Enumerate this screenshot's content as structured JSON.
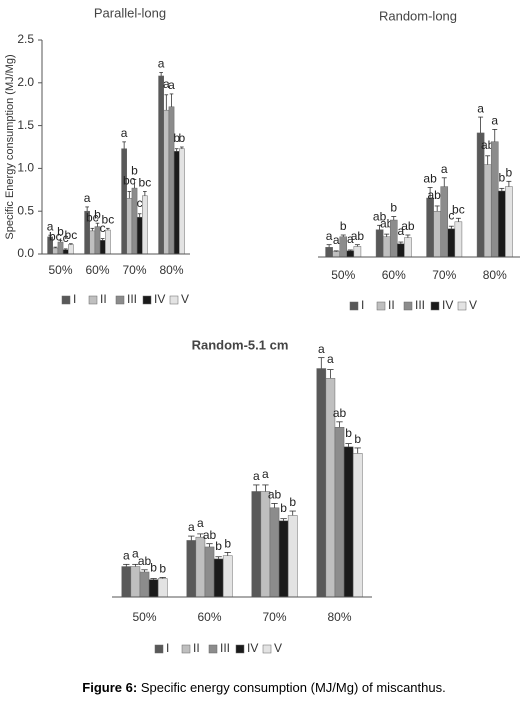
{
  "chart_data": [
    {
      "type": "bar",
      "title": "Parallel-long",
      "y_label": "Specific Energy consumption (MJ/Mg)",
      "categories": [
        "50%",
        "60%",
        "70%",
        "80%"
      ],
      "ylim": [
        0,
        2.5
      ],
      "yticks": [
        {
          "value": 0,
          "label": "0.0"
        },
        0.5,
        {
          "value": 1,
          "label": "1.0"
        },
        1.5,
        {
          "value": 2,
          "label": "2.0"
        },
        2.5
      ],
      "series": [
        {
          "name": "I",
          "color": "#595959",
          "values": [
            0.2,
            0.5,
            1.23,
            2.08
          ],
          "errors": [
            0.02,
            0.05,
            0.08,
            0.04
          ],
          "letters": [
            "a",
            "a",
            "a",
            "a"
          ]
        },
        {
          "name": "II",
          "color": "#bfbfbf",
          "values": [
            0.07,
            0.27,
            0.65,
            1.68
          ],
          "errors": [
            0.01,
            0.03,
            0.08,
            0.18
          ],
          "letters": [
            "bc",
            "bc",
            "bc",
            "a"
          ]
        },
        {
          "name": "III",
          "color": "#8c8c8c",
          "values": [
            0.14,
            0.32,
            0.77,
            1.72
          ],
          "errors": [
            0.02,
            0.04,
            0.1,
            0.15
          ],
          "letters": [
            "b",
            "b",
            "b",
            "a"
          ]
        },
        {
          "name": "IV",
          "color": "#1a1a1a",
          "values": [
            0.05,
            0.16,
            0.43,
            1.2
          ],
          "errors": [
            0.01,
            0.02,
            0.04,
            0.03
          ],
          "letters": [
            "c",
            "c",
            "c",
            "b"
          ]
        },
        {
          "name": "V",
          "color": "#e3e3e3",
          "values": [
            0.11,
            0.28,
            0.68,
            1.23
          ],
          "errors": [
            0.01,
            0.02,
            0.05,
            0.02
          ],
          "letters": [
            "bc",
            "bc",
            "bc",
            "b"
          ]
        }
      ]
    },
    {
      "type": "bar",
      "title": "Random-long",
      "categories": [
        "50%",
        "60%",
        "70%",
        "80%"
      ],
      "ylim": [
        0,
        2
      ],
      "series": [
        {
          "name": "I",
          "color": "#595959",
          "values": [
            0.11,
            0.31,
            0.67,
            1.41
          ],
          "errors": [
            0.03,
            0.05,
            0.12,
            0.18
          ],
          "letters": [
            "a",
            "ab",
            "ab",
            "a"
          ]
        },
        {
          "name": "II",
          "color": "#bfbfbf",
          "values": [
            0.06,
            0.23,
            0.52,
            1.05
          ],
          "errors": [
            0.01,
            0.03,
            0.06,
            0.1
          ],
          "letters": [
            "a",
            "ab",
            "abc",
            "ab"
          ]
        },
        {
          "name": "III",
          "color": "#8c8c8c",
          "values": [
            0.23,
            0.42,
            0.8,
            1.31
          ],
          "errors": [
            0.02,
            0.04,
            0.1,
            0.14
          ],
          "letters": [
            "b",
            "b",
            "a",
            "a"
          ]
        },
        {
          "name": "IV",
          "color": "#1a1a1a",
          "values": [
            0.07,
            0.15,
            0.32,
            0.75
          ],
          "errors": [
            0.01,
            0.02,
            0.03,
            0.03
          ],
          "letters": [
            "a",
            "a",
            "c",
            "b"
          ]
        },
        {
          "name": "V",
          "color": "#e3e3e3",
          "values": [
            0.12,
            0.22,
            0.4,
            0.8
          ],
          "errors": [
            0.02,
            0.03,
            0.04,
            0.06
          ],
          "letters": [
            "ab",
            "ab",
            "bc",
            "b"
          ]
        }
      ]
    },
    {
      "type": "bar",
      "title": "Random-5.1 cm",
      "categories": [
        "50%",
        "60%",
        "70%",
        "80%"
      ],
      "ylim": [
        0,
        2.5
      ],
      "series": [
        {
          "name": "I",
          "color": "#595959",
          "values": [
            0.28,
            0.52,
            0.97,
            2.1
          ],
          "errors": [
            0.02,
            0.04,
            0.06,
            0.1
          ],
          "letters": [
            "a",
            "a",
            "a",
            "a"
          ]
        },
        {
          "name": "II",
          "color": "#bfbfbf",
          "values": [
            0.28,
            0.55,
            0.97,
            2.01
          ],
          "errors": [
            0.02,
            0.03,
            0.06,
            0.08
          ],
          "letters": [
            "a",
            "a",
            "a",
            "a"
          ]
        },
        {
          "name": "III",
          "color": "#8c8c8c",
          "values": [
            0.23,
            0.46,
            0.82,
            1.56
          ],
          "errors": [
            0.02,
            0.03,
            0.04,
            0.05
          ],
          "letters": [
            "ab",
            "ab",
            "ab",
            "ab"
          ]
        },
        {
          "name": "IV",
          "color": "#1a1a1a",
          "values": [
            0.16,
            0.35,
            0.7,
            1.38
          ],
          "errors": [
            0.01,
            0.02,
            0.02,
            0.03
          ],
          "letters": [
            "b",
            "b",
            "b",
            "b"
          ]
        },
        {
          "name": "V",
          "color": "#e3e3e3",
          "values": [
            0.17,
            0.38,
            0.75,
            1.32
          ],
          "errors": [
            0.01,
            0.03,
            0.04,
            0.05
          ],
          "letters": [
            "b",
            "b",
            "b",
            "b"
          ]
        }
      ]
    }
  ],
  "caption": {
    "label": "Figure 6:",
    "text": "Specific energy consumption (MJ/Mg) of miscanthus."
  }
}
